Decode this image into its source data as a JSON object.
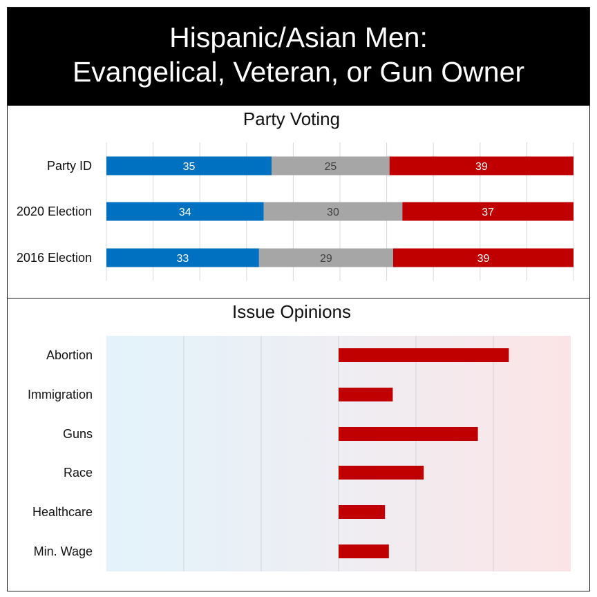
{
  "header": {
    "title_line1": "Hispanic/Asian Men:",
    "title_line2": "Evangelical, Veteran, or Gun Owner"
  },
  "colors": {
    "democrat": "#0070c0",
    "other": "#a6a6a6",
    "republican": "#c00000",
    "grid": "#d9d9d9",
    "header_bg": "#000000"
  },
  "chart_data": [
    {
      "type": "bar",
      "orientation": "horizontal",
      "stacked": true,
      "title": "Party Voting",
      "categories": [
        "Party ID",
        "2020 Election",
        "2016 Election"
      ],
      "series": [
        {
          "color": "#0070c0",
          "values": [
            35,
            34,
            33
          ]
        },
        {
          "color": "#a6a6a6",
          "values": [
            25,
            30,
            29
          ]
        },
        {
          "color": "#c00000",
          "values": [
            39,
            37,
            39
          ]
        }
      ],
      "xlim": [
        0,
        100
      ],
      "grid": true
    },
    {
      "type": "bar",
      "orientation": "horizontal",
      "title": "Issue Opinions",
      "categories": [
        "Abortion",
        "Immigration",
        "Guns",
        "Race",
        "Healthcare",
        "Min. Wage"
      ],
      "series": [
        {
          "color": "#c00000",
          "values": [
            22,
            7,
            18,
            11,
            6,
            6.5
          ]
        }
      ],
      "xlim": [
        -30,
        30
      ],
      "grid": true,
      "background": "gradient light-blue to light-red"
    }
  ]
}
